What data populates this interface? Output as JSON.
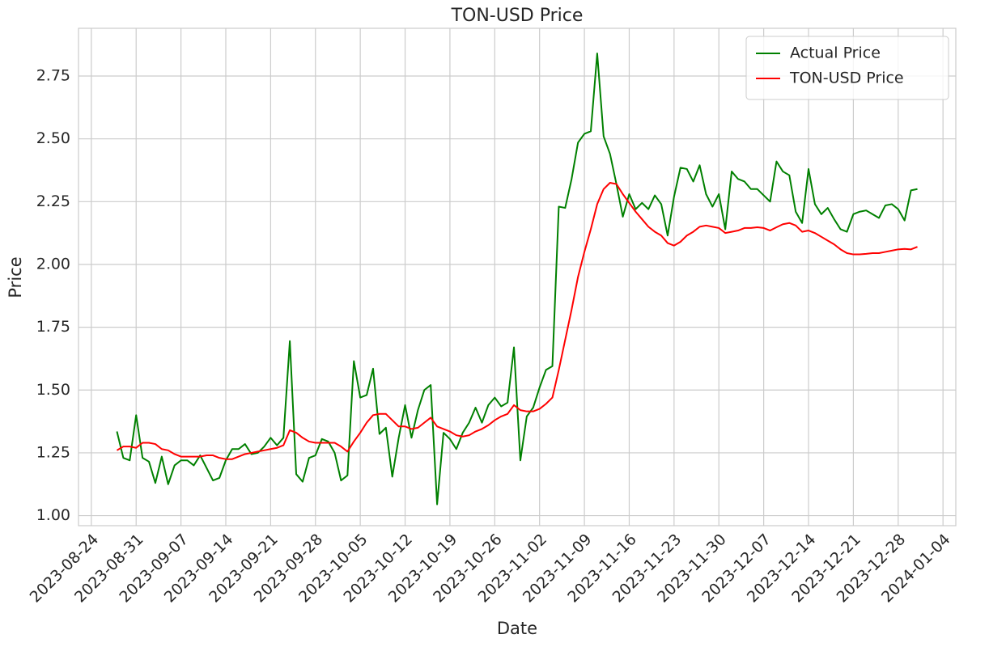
{
  "chart_data": {
    "type": "line",
    "title": "TON-USD Price",
    "x_label": "Date",
    "y_label": "Price",
    "x": [
      "2023-08-28",
      "2023-08-29",
      "2023-08-30",
      "2023-08-31",
      "2023-09-01",
      "2023-09-02",
      "2023-09-03",
      "2023-09-04",
      "2023-09-05",
      "2023-09-06",
      "2023-09-07",
      "2023-09-08",
      "2023-09-09",
      "2023-09-10",
      "2023-09-11",
      "2023-09-12",
      "2023-09-13",
      "2023-09-14",
      "2023-09-15",
      "2023-09-16",
      "2023-09-17",
      "2023-09-18",
      "2023-09-19",
      "2023-09-20",
      "2023-09-21",
      "2023-09-22",
      "2023-09-23",
      "2023-09-24",
      "2023-09-25",
      "2023-09-26",
      "2023-09-27",
      "2023-09-28",
      "2023-09-29",
      "2023-09-30",
      "2023-10-01",
      "2023-10-02",
      "2023-10-03",
      "2023-10-04",
      "2023-10-05",
      "2023-10-06",
      "2023-10-07",
      "2023-10-08",
      "2023-10-09",
      "2023-10-10",
      "2023-10-11",
      "2023-10-12",
      "2023-10-13",
      "2023-10-14",
      "2023-10-15",
      "2023-10-16",
      "2023-10-17",
      "2023-10-18",
      "2023-10-19",
      "2023-10-20",
      "2023-10-21",
      "2023-10-22",
      "2023-10-23",
      "2023-10-24",
      "2023-10-25",
      "2023-10-26",
      "2023-10-27",
      "2023-10-28",
      "2023-10-29",
      "2023-10-30",
      "2023-10-31",
      "2023-11-01",
      "2023-11-02",
      "2023-11-03",
      "2023-11-04",
      "2023-11-05",
      "2023-11-06",
      "2023-11-07",
      "2023-11-08",
      "2023-11-09",
      "2023-11-10",
      "2023-11-11",
      "2023-11-12",
      "2023-11-13",
      "2023-11-14",
      "2023-11-15",
      "2023-11-16",
      "2023-11-17",
      "2023-11-18",
      "2023-11-19",
      "2023-11-20",
      "2023-11-21",
      "2023-11-22",
      "2023-11-23",
      "2023-11-24",
      "2023-11-25",
      "2023-11-26",
      "2023-11-27",
      "2023-11-28",
      "2023-11-29",
      "2023-11-30",
      "2023-12-01",
      "2023-12-02",
      "2023-12-03",
      "2023-12-04",
      "2023-12-05",
      "2023-12-06",
      "2023-12-07",
      "2023-12-08",
      "2023-12-09",
      "2023-12-10",
      "2023-12-11",
      "2023-12-12",
      "2023-12-13",
      "2023-12-14",
      "2023-12-15",
      "2023-12-16",
      "2023-12-17",
      "2023-12-18",
      "2023-12-19",
      "2023-12-20",
      "2023-12-21",
      "2023-12-22",
      "2023-12-23",
      "2023-12-24",
      "2023-12-25",
      "2023-12-26",
      "2023-12-27",
      "2023-12-28",
      "2023-12-29",
      "2023-12-30",
      "2023-12-31"
    ],
    "series": [
      {
        "name": "Actual Price",
        "color": "#008000",
        "values": [
          1.335,
          1.23,
          1.22,
          1.4,
          1.23,
          1.215,
          1.13,
          1.235,
          1.125,
          1.2,
          1.22,
          1.22,
          1.2,
          1.24,
          1.19,
          1.14,
          1.15,
          1.22,
          1.265,
          1.265,
          1.285,
          1.245,
          1.25,
          1.275,
          1.31,
          1.28,
          1.31,
          1.695,
          1.165,
          1.135,
          1.23,
          1.24,
          1.305,
          1.295,
          1.25,
          1.14,
          1.16,
          1.615,
          1.47,
          1.48,
          1.585,
          1.325,
          1.35,
          1.155,
          1.31,
          1.44,
          1.31,
          1.42,
          1.5,
          1.52,
          1.045,
          1.33,
          1.305,
          1.265,
          1.33,
          1.37,
          1.43,
          1.37,
          1.44,
          1.47,
          1.435,
          1.45,
          1.67,
          1.22,
          1.395,
          1.43,
          1.51,
          1.58,
          1.595,
          2.23,
          2.225,
          2.34,
          2.485,
          2.52,
          2.53,
          2.84,
          2.51,
          2.44,
          2.32,
          2.19,
          2.28,
          2.22,
          2.245,
          2.22,
          2.275,
          2.24,
          2.115,
          2.27,
          2.385,
          2.38,
          2.33,
          2.395,
          2.28,
          2.23,
          2.28,
          2.14,
          2.37,
          2.34,
          2.33,
          2.3,
          2.3,
          2.275,
          2.25,
          2.41,
          2.37,
          2.355,
          2.21,
          2.165,
          2.38,
          2.24,
          2.2,
          2.225,
          2.18,
          2.14,
          2.13,
          2.2,
          2.21,
          2.215,
          2.2,
          2.185,
          2.235,
          2.24,
          2.22,
          2.175,
          2.295,
          2.3
        ]
      },
      {
        "name": "TON-USD Price",
        "color": "#ff0000",
        "values": [
          1.26,
          1.275,
          1.275,
          1.27,
          1.29,
          1.29,
          1.285,
          1.265,
          1.26,
          1.245,
          1.235,
          1.235,
          1.235,
          1.235,
          1.24,
          1.24,
          1.23,
          1.225,
          1.225,
          1.235,
          1.245,
          1.25,
          1.255,
          1.26,
          1.265,
          1.27,
          1.28,
          1.34,
          1.33,
          1.31,
          1.295,
          1.29,
          1.29,
          1.29,
          1.29,
          1.275,
          1.255,
          1.295,
          1.33,
          1.37,
          1.4,
          1.405,
          1.405,
          1.38,
          1.355,
          1.355,
          1.345,
          1.35,
          1.37,
          1.39,
          1.355,
          1.345,
          1.335,
          1.32,
          1.315,
          1.32,
          1.335,
          1.345,
          1.36,
          1.38,
          1.395,
          1.405,
          1.44,
          1.42,
          1.415,
          1.415,
          1.425,
          1.445,
          1.47,
          1.58,
          1.7,
          1.82,
          1.95,
          2.05,
          2.14,
          2.24,
          2.3,
          2.325,
          2.32,
          2.28,
          2.245,
          2.21,
          2.18,
          2.15,
          2.13,
          2.115,
          2.085,
          2.075,
          2.09,
          2.115,
          2.13,
          2.15,
          2.155,
          2.15,
          2.145,
          2.125,
          2.13,
          2.135,
          2.145,
          2.145,
          2.148,
          2.145,
          2.135,
          2.148,
          2.16,
          2.165,
          2.155,
          2.13,
          2.135,
          2.125,
          2.11,
          2.095,
          2.08,
          2.06,
          2.045,
          2.04,
          2.04,
          2.042,
          2.045,
          2.045,
          2.05,
          2.055,
          2.06,
          2.062,
          2.06,
          2.07
        ]
      }
    ],
    "xlim": [
      "2023-08-22",
      "2024-01-06"
    ],
    "xticks": [
      "2023-08-24",
      "2023-08-31",
      "2023-09-07",
      "2023-09-14",
      "2023-09-21",
      "2023-09-28",
      "2023-10-05",
      "2023-10-12",
      "2023-10-19",
      "2023-10-26",
      "2023-11-02",
      "2023-11-09",
      "2023-11-16",
      "2023-11-23",
      "2023-11-30",
      "2023-12-07",
      "2023-12-14",
      "2023-12-21",
      "2023-12-28",
      "2024-01-04"
    ],
    "ylim": [
      0.96,
      2.94
    ],
    "yticks": [
      {
        "value": 1,
        "label": "1.00"
      },
      1.25,
      {
        "value": 1.5,
        "label": "1.50"
      },
      1.75,
      {
        "value": 2,
        "label": "2.00"
      },
      2.25,
      {
        "value": 2.5,
        "label": "2.50"
      },
      2.75
    ],
    "grid": true,
    "legend": "upper right"
  }
}
